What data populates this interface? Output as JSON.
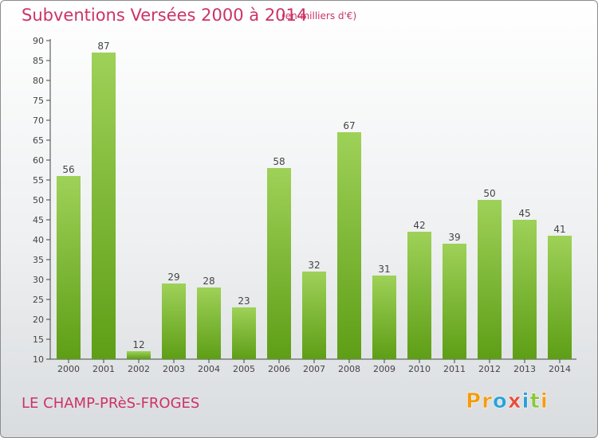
{
  "header": {
    "title": "Subventions Versées 2000 à 2014",
    "subtitle": "(en milliers d'€)"
  },
  "footer": {
    "commune": "LE CHAMP-PRèS-FROGES",
    "logo_letters": [
      "P",
      "r",
      "o",
      "x",
      "i",
      "t",
      "i"
    ],
    "logo_colors": [
      "#f39c12",
      "#f39c12",
      "#27a3d9",
      "#e74c3c",
      "#2e9fd6",
      "#8cc63f",
      "#f39c12"
    ]
  },
  "colors": {
    "bar_top": "#9ed158",
    "bar_bottom": "#5e9e16",
    "accent": "#cc3366"
  },
  "chart_data": {
    "type": "bar",
    "categories": [
      "2000",
      "2001",
      "2002",
      "2003",
      "2004",
      "2005",
      "2006",
      "2007",
      "2008",
      "2009",
      "2010",
      "2011",
      "2012",
      "2013",
      "2014"
    ],
    "values": [
      56,
      87,
      12,
      29,
      28,
      23,
      58,
      32,
      67,
      31,
      42,
      39,
      50,
      45,
      41
    ],
    "data_labels": [
      "56",
      "87",
      "12",
      "29",
      "28",
      "23",
      "58",
      "32",
      "67",
      "31",
      "42",
      "39",
      "50",
      "45",
      "41"
    ],
    "ylim": [
      10,
      90
    ],
    "yticks": [
      10,
      15,
      20,
      25,
      30,
      35,
      40,
      45,
      50,
      55,
      60,
      65,
      70,
      75,
      80,
      85,
      90
    ],
    "grid": false
  }
}
